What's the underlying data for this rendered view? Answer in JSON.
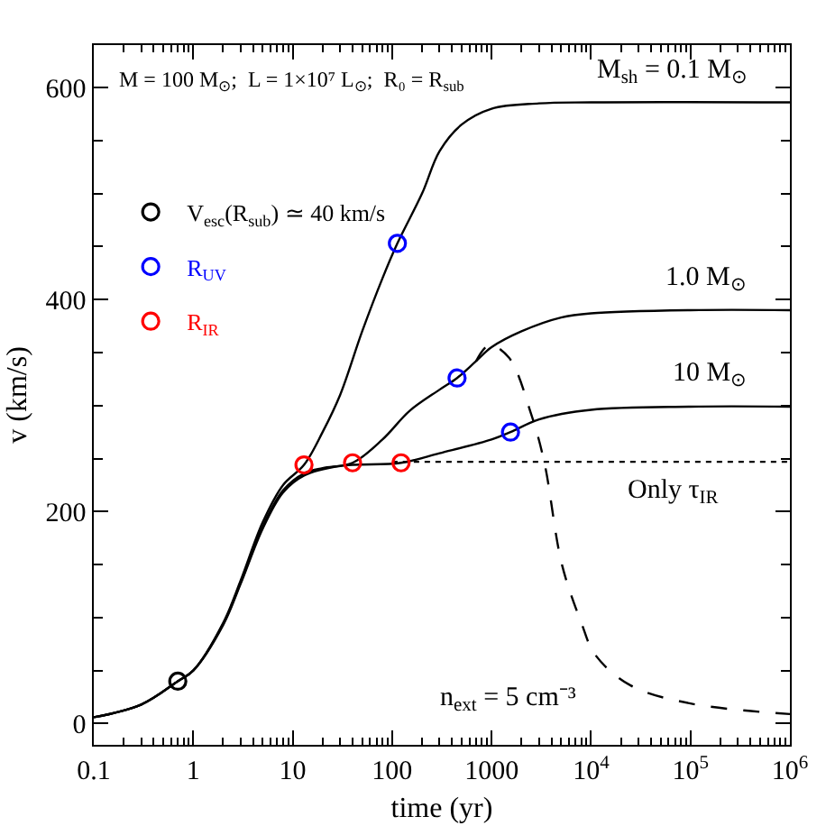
{
  "chart_data": {
    "type": "line",
    "xlabel": "time (yr)",
    "ylabel": "v (km/s)",
    "log": "x",
    "xlim": [
      0.1,
      1000000
    ],
    "ylim": [
      -20,
      640
    ],
    "xticks": [
      0.1,
      1,
      10,
      100,
      1000,
      {
        "value": 10000,
        "label": "10$^{4}$"
      },
      {
        "value": 100000,
        "label": "10$^{5}$"
      },
      {
        "value": 1000000,
        "label": "10$^{6}$"
      }
    ],
    "yticks": [
      0,
      200,
      400,
      600
    ],
    "grid": false,
    "legend": "top left",
    "marker": "none",
    "series": [
      {
        "name": "M$_{sh}$ = 0.1 M$_{⊙}$",
        "color": "#000000",
        "line_style": "solid",
        "x": [
          0.1,
          0.3,
          0.7,
          1,
          2,
          3,
          5,
          8,
          13,
          20,
          30,
          50,
          80,
          113,
          200,
          300,
          500,
          1000,
          3000,
          10000,
          1000000
        ],
        "values": [
          6,
          18,
          40,
          50,
          95,
          135,
          190,
          225,
          244,
          275,
          310,
          370,
          420,
          453,
          500,
          540,
          565,
          580,
          585,
          586,
          586
        ]
      },
      {
        "name": "1.0 M$_{⊙}$",
        "color": "#000000",
        "line_style": "solid",
        "x": [
          0.1,
          0.3,
          0.7,
          1,
          2,
          3,
          5,
          8,
          13,
          20,
          40,
          80,
          150,
          300,
          450,
          700,
          1000,
          2000,
          5000,
          10000,
          100000,
          1000000
        ],
        "values": [
          6,
          18,
          40,
          50,
          94,
          133,
          186,
          220,
          236,
          241,
          246,
          268,
          295,
          315,
          326,
          342,
          355,
          370,
          383,
          387,
          390,
          390
        ]
      },
      {
        "name": "10 M$_{⊙}$",
        "color": "#000000",
        "line_style": "solid",
        "x": [
          0.1,
          0.3,
          0.7,
          1,
          2,
          3,
          5,
          8,
          13,
          30,
          123,
          300,
          1000,
          1550,
          3000,
          10000,
          100000,
          1000000
        ],
        "values": [
          6,
          18,
          40,
          50,
          93,
          132,
          184,
          218,
          234,
          243,
          246,
          255,
          268,
          275,
          287,
          296,
          299,
          299
        ]
      },
      {
        "name": "Only τ$_{IR}$",
        "color": "#000000",
        "line_style": "dotted",
        "x": [
          100,
          1000000
        ],
        "values": [
          247,
          247
        ]
      },
      {
        "name": "n$_{ext}$ = 5 cm⁻³",
        "color": "#000000",
        "line_style": "dashed",
        "x": [
          700,
          950,
          1500,
          2500,
          3400,
          5100,
          8000,
          11000,
          25000,
          100000,
          1000000
        ],
        "values": [
          342,
          357,
          345,
          292,
          246,
          150,
          95,
          65,
          36,
          19,
          9
        ]
      },
      {
        "type": "scatter",
        "marker": "circle",
        "name": "V$_{esc}$(R$_{sub}$) ≃ 40 km/s",
        "color": "#000000",
        "x": [
          0.7
        ],
        "values": [
          40
        ]
      },
      {
        "type": "scatter",
        "marker": "circle",
        "name": "R$_{UV}$",
        "color": "#0000ff",
        "x": [
          113,
          450,
          1550
        ],
        "values": [
          453,
          326,
          275
        ]
      },
      {
        "type": "scatter",
        "marker": "circle",
        "name": "R$_{IR}$",
        "color": "#ff0000",
        "x": [
          13,
          40,
          123
        ],
        "values": [
          244,
          246,
          246
        ]
      }
    ],
    "annotations": [
      "M = 100 M$_{⊙}$;  L = 1×10⁷ L$_{⊙}$;  R₀ = R$_{sub}$"
    ]
  }
}
